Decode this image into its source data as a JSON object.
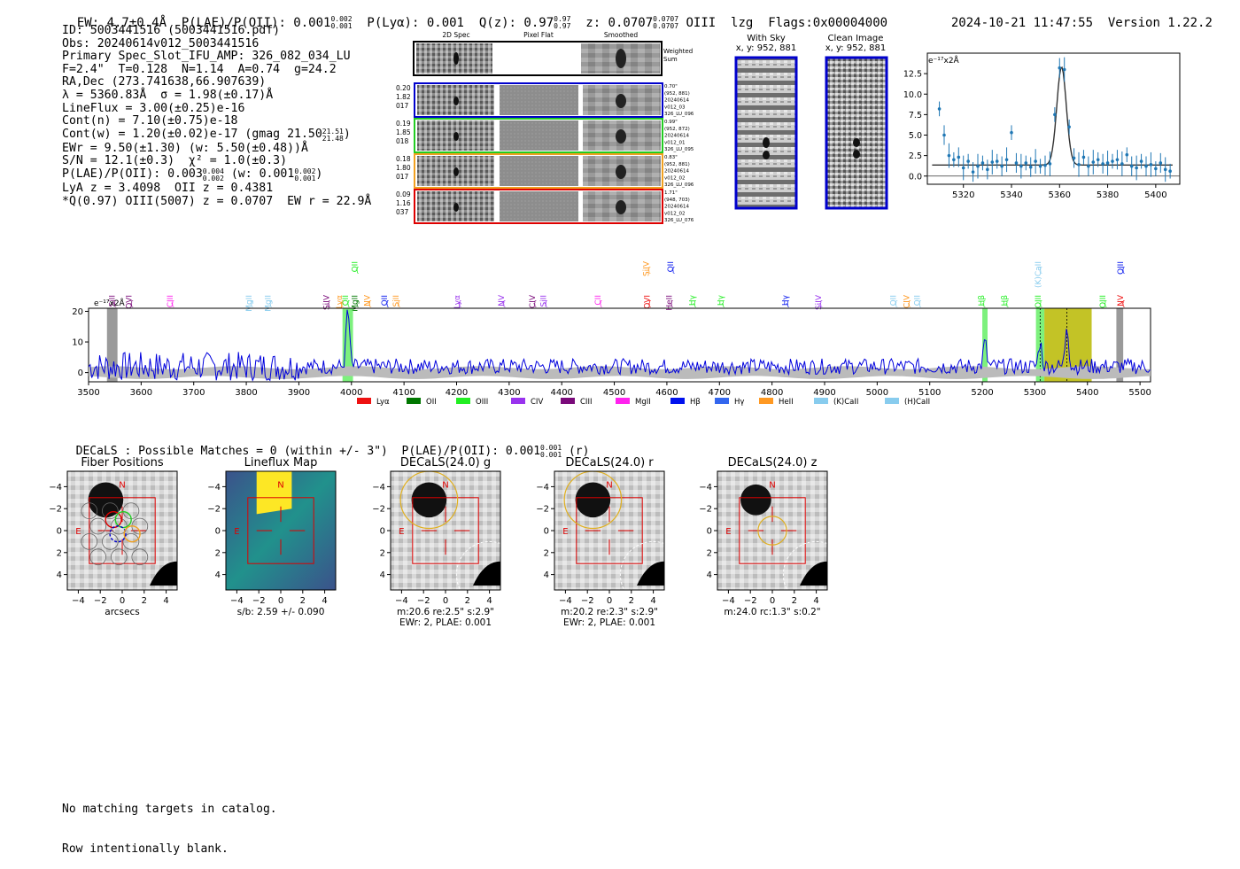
{
  "header": {
    "ew": "EW: 4.7±0.4Å",
    "plae": "P(LAE)/P(OII): 0.001",
    "plae_up": "0.002",
    "plae_lo": "0.001",
    "plya": "P(Lyα): 0.001",
    "qz": "Q(z): 0.97",
    "qz_up": "0.97",
    "qz_lo": "0.97",
    "z": "z: 0.0707",
    "z_up": "0.0707",
    "z_lo": "0.0707",
    "line": "OIII",
    "lzg": "lzg",
    "flags": "Flags:0x00004000",
    "datetime": "2024-10-21 11:47:55",
    "version": "Version 1.22.2"
  },
  "info": {
    "id": "ID: 5003441516 (5003441516.pdf)",
    "obs": "Obs: 20240614v012_5003441516",
    "primary": "Primary Spec_Slot_IFU_AMP: 326_082_034_LU",
    "fiber": "F=2.4\"  T=0.128  N=1.14  A=0.74  g=24.2",
    "radec": "RA,Dec (273.741638,66.907639)",
    "lambda": "λ = 5360.83Å  σ = 1.98(±0.17)Å",
    "lineflux": "LineFlux = 3.00(±0.25)e-16",
    "contn": "Cont(n) = 7.10(±0.75)e-18",
    "contw": "Cont(w) = 1.20(±0.02)e-17 (gmag 21.50",
    "contw_up": "21.51",
    "contw_lo": "21.48",
    "ewr": "EWr = 9.50(±1.30) (w: 5.50(±0.48))Å",
    "sn": "S/N = 12.1(±0.3)  χ² = 1.0(±0.3)",
    "plae2": "P(LAE)/P(OII): 0.003",
    "plae2_up": "0.004",
    "plae2_lo": "0.002",
    "plae2_w": "(w: 0.001",
    "plae2_w_up": "0.002",
    "plae2_w_lo": "0.001",
    "lya": "LyA z = 3.4098  OII z = 0.4381",
    "q": "*Q(0.97) OIII(5007) z = 0.0707  EW r = 22.9Å"
  },
  "cutouts": {
    "col1": "2D Spec",
    "col2": "Pixel Flat",
    "col3": "Smoothed",
    "weighted": "Weighted\nSum",
    "rows": [
      {
        "left": [
          "0.20",
          "1.82",
          "017"
        ],
        "right": [
          "0.70\"",
          "(952, 881)",
          "20240614",
          "v012_03",
          "326_LU_096"
        ],
        "color": "#0000cc"
      },
      {
        "left": [
          "0.19",
          "1.85",
          "018"
        ],
        "right": [
          "0.99\"",
          "(952, 872)",
          "20240614",
          "v012_01",
          "326_LU_095"
        ],
        "color": "#22cc22"
      },
      {
        "left": [
          "0.18",
          "1.80",
          "017"
        ],
        "right": [
          "0.83\"",
          "(952, 881)",
          "20240614",
          "v012_02",
          "326_LU_096"
        ],
        "color": "#f0a020"
      },
      {
        "left": [
          "0.09",
          "1.16",
          "037"
        ],
        "right": [
          "1.71\"",
          "(948, 703)",
          "20240614",
          "v012_02",
          "326_LU_076"
        ],
        "color": "#dd0000"
      }
    ]
  },
  "sky": {
    "with_sky": "With Sky",
    "with_sky_xy": "x, y: 952, 881",
    "clean": "Clean Image",
    "clean_xy": "x, y: 952, 881"
  },
  "zoom_chart": {
    "ylabel": "e⁻¹⁷x2Å",
    "xticks": [
      "5320",
      "5340",
      "5360",
      "5380",
      "5400"
    ],
    "yticks": [
      "0.0",
      "2.5",
      "5.0",
      "7.5",
      "10.0",
      "12.5"
    ]
  },
  "full_spectrum": {
    "ylabel": "e⁻¹⁷x2Å",
    "xticks": [
      "3500",
      "3600",
      "3700",
      "3800",
      "3900",
      "4000",
      "4100",
      "4200",
      "4300",
      "4400",
      "4500",
      "4600",
      "4700",
      "4800",
      "4900",
      "5000",
      "5100",
      "5200",
      "5300",
      "5400",
      "5500"
    ],
    "yticks": [
      "0",
      "10",
      "20"
    ],
    "legend": [
      {
        "name": "Lyα",
        "color": "#ee1111"
      },
      {
        "name": "OII",
        "color": "#007700"
      },
      {
        "name": "OIII",
        "color": "#22ee22"
      },
      {
        "name": "CIV",
        "color": "#9933ee"
      },
      {
        "name": "CIII",
        "color": "#7a0a7a"
      },
      {
        "name": "MgII",
        "color": "#ff22ee"
      },
      {
        "name": "Hβ",
        "color": "#0011ee"
      },
      {
        "name": "Hγ",
        "color": "#3366ee"
      },
      {
        "name": "HeII",
        "color": "#ff9922"
      },
      {
        "name": "(K)CaII",
        "color": "#88ccee"
      },
      {
        "name": "(H)CaII",
        "color": "#88ccee"
      }
    ],
    "line_labels": [
      {
        "t": "SiII",
        "x": 3550,
        "c": "#7a0a7a",
        "r": 1
      },
      {
        "t": "OVI",
        "x": 3582,
        "c": "#7a0a7a",
        "r": 1
      },
      {
        "t": "CIII",
        "x": 3660,
        "c": "#ff22ee",
        "r": 1
      },
      {
        "t": "MgII",
        "x": 3810,
        "c": "#88ccee",
        "r": 1
      },
      {
        "t": "MgII",
        "x": 3846,
        "c": "#88ccee",
        "r": 1
      },
      {
        "t": "SiIV",
        "x": 3957,
        "c": "#7a0a7a",
        "r": 1
      },
      {
        "t": "Lyα",
        "x": 3982,
        "c": "#ff9922",
        "r": 1
      },
      {
        "t": "OII",
        "x": 3994,
        "c": "#22ee22",
        "r": 1
      },
      {
        "t": "MgII",
        "x": 4011,
        "c": "#007700",
        "r": 1
      },
      {
        "t": "OII",
        "x": 4011,
        "c": "#22ee22",
        "r": 0
      },
      {
        "t": "NV",
        "x": 4035,
        "c": "#ff9922",
        "r": 1
      },
      {
        "t": "OII",
        "x": 4068,
        "c": "#0011ee",
        "r": 1
      },
      {
        "t": "SiII",
        "x": 4090,
        "c": "#ff9922",
        "r": 1
      },
      {
        "t": "Lyα",
        "x": 4206,
        "c": "#9933ee",
        "r": 1
      },
      {
        "t": "NV",
        "x": 4290,
        "c": "#9933ee",
        "r": 1
      },
      {
        "t": "CIV",
        "x": 4349,
        "c": "#7a0a7a",
        "r": 1
      },
      {
        "t": "SiII",
        "x": 4370,
        "c": "#9933ee",
        "r": 1
      },
      {
        "t": "CII",
        "x": 4474,
        "c": "#ff22ee",
        "r": 1
      },
      {
        "t": "OVI",
        "x": 4567,
        "c": "#ee1111",
        "r": 1
      },
      {
        "t": "SiIV",
        "x": 4566,
        "c": "#ff9922",
        "r": 0
      },
      {
        "t": "HeII",
        "x": 4609,
        "c": "#7a0a7a",
        "r": 1
      },
      {
        "t": "OII",
        "x": 4612,
        "c": "#0011ee",
        "r": 0
      },
      {
        "t": "Hγ",
        "x": 4653,
        "c": "#22ee22",
        "r": 1
      },
      {
        "t": "Hγ",
        "x": 4707,
        "c": "#22ee22",
        "r": 1
      },
      {
        "t": "Hγ",
        "x": 4830,
        "c": "#0011ee",
        "r": 1
      },
      {
        "t": "SiIV",
        "x": 4893,
        "c": "#9933ee",
        "r": 1
      },
      {
        "t": "OII",
        "x": 5036,
        "c": "#88ccee",
        "r": 1
      },
      {
        "t": "CIV",
        "x": 5061,
        "c": "#ff9922",
        "r": 1
      },
      {
        "t": "OII",
        "x": 5081,
        "c": "#88ccee",
        "r": 1
      },
      {
        "t": "Hβ",
        "x": 5203,
        "c": "#22ee22",
        "r": 1
      },
      {
        "t": "Hβ",
        "x": 5247,
        "c": "#22ee22",
        "r": 1
      },
      {
        "t": "OIII",
        "x": 5311,
        "c": "#22ee22",
        "r": 1
      },
      {
        "t": "(K)CaII",
        "x": 5311,
        "c": "#88ccee",
        "r": 0
      },
      {
        "t": "OIII",
        "x": 5434,
        "c": "#22ee22",
        "r": 1
      },
      {
        "t": "NV",
        "x": 5468,
        "c": "#ee1111",
        "r": 1
      },
      {
        "t": "OIII",
        "x": 5468,
        "c": "#0011ee",
        "r": 0
      }
    ]
  },
  "decals": {
    "summary": "DECaLS : Possible Matches = 0 (within +/- 3\")  P(LAE)/P(OII): 0.001",
    "summary_up": "0.001",
    "summary_lo": "0.001",
    "summary_tail": "(r)",
    "panels": [
      {
        "title": "Fiber Positions",
        "cap1": "arcsecs",
        "cap2": ""
      },
      {
        "title": "Lineflux Map",
        "cap1": "s/b: 2.59 +/- 0.090",
        "cap2": ""
      },
      {
        "title": "DECaLS(24.0) g",
        "cap1": "m:20.6  re:2.5\"  s:2.9\"",
        "cap2": "EWr: 2, PLAE: 0.001"
      },
      {
        "title": "DECaLS(24.0) r",
        "cap1": "m:20.2  re:2.3\"  s:2.9\"",
        "cap2": "EWr: 2, PLAE: 0.001"
      },
      {
        "title": "DECaLS(24.0) z",
        "cap1": "m:24.0 rc:1.3\"  s:0.2\"",
        "cap2": ""
      }
    ],
    "ticks": [
      "−4",
      "−2",
      "0",
      "2",
      "4"
    ],
    "north": "N",
    "east": "E"
  },
  "footer": {
    "line1": "No matching targets in catalog.",
    "line2": "Row intentionally blank."
  },
  "chart_data": [
    {
      "type": "scatter",
      "title": "",
      "xlabel": "",
      "ylabel": "e⁻¹⁷x2Å",
      "xlim": [
        5305,
        5410
      ],
      "ylim": [
        -1,
        15
      ],
      "x": [
        5310,
        5312,
        5314,
        5316,
        5318,
        5320,
        5322,
        5324,
        5326,
        5328,
        5330,
        5332,
        5334,
        5336,
        5338,
        5340,
        5342,
        5344,
        5346,
        5348,
        5350,
        5352,
        5354,
        5356,
        5358,
        5360,
        5362,
        5364,
        5366,
        5368,
        5370,
        5372,
        5374,
        5376,
        5378,
        5380,
        5382,
        5384,
        5386,
        5388,
        5390,
        5392,
        5394,
        5396,
        5398,
        5400,
        5402,
        5404,
        5406
      ],
      "y": [
        8.2,
        5.0,
        2.5,
        2.0,
        2.3,
        1.0,
        1.8,
        0.5,
        1.2,
        1.6,
        0.8,
        1.7,
        1.8,
        1.2,
        2.0,
        5.3,
        1.6,
        1.2,
        1.6,
        1.1,
        1.8,
        1.2,
        1.3,
        1.5,
        7.5,
        13.2,
        13.0,
        6.0,
        2.2,
        1.4,
        2.3,
        1.2,
        1.7,
        2.0,
        1.5,
        1.6,
        1.8,
        2.0,
        1.5,
        2.6,
        1.2,
        1.0,
        1.8,
        1.2,
        1.4,
        0.9,
        1.6,
        0.8,
        0.6
      ],
      "fit": {
        "center": 5360.83,
        "sigma": 1.98,
        "peak": 13.3,
        "continuum": 1.35
      }
    },
    {
      "type": "line",
      "title": "",
      "xlabel": "",
      "ylabel": "e⁻¹⁷x2Å",
      "xlim": [
        3500,
        5520
      ],
      "ylim": [
        -3,
        21
      ],
      "series": [
        {
          "name": "",
          "description": "noisy spectrum with emission peaks",
          "peaks": [
            {
              "x": 3993,
              "y": 19
            },
            {
              "x": 5205,
              "y": 8
            },
            {
              "x": 5310,
              "y": 8
            },
            {
              "x": 5361,
              "y": 14
            }
          ]
        }
      ],
      "highlight_bands": [
        {
          "x0": 3535,
          "x1": 3555,
          "color": "#888888"
        },
        {
          "x0": 3983,
          "x1": 4003,
          "color": "#66ee66"
        },
        {
          "x0": 5200,
          "x1": 5210,
          "color": "#66ee66"
        },
        {
          "x0": 5302,
          "x1": 5318,
          "color": "#66ee66"
        },
        {
          "x0": 5318,
          "x1": 5408,
          "color": "#b8b800"
        },
        {
          "x0": 5455,
          "x1": 5468,
          "color": "#888888"
        }
      ]
    }
  ]
}
